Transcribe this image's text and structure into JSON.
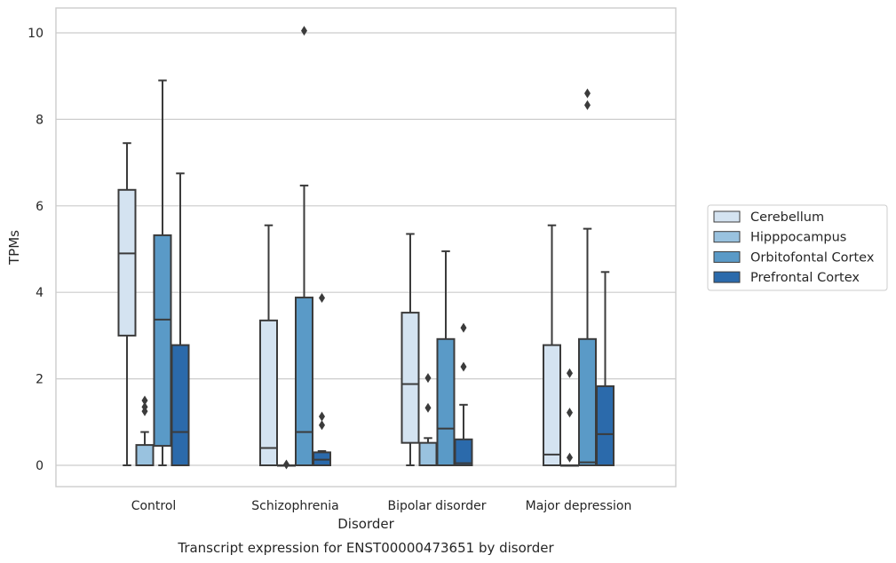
{
  "chart_data": {
    "type": "boxplot",
    "title": "Transcript expression for ENST00000473651 by disorder",
    "xlabel": "Disorder",
    "ylabel": "TPMs",
    "ylim": [
      -0.5,
      10.6
    ],
    "yticks": [
      0,
      2,
      4,
      6,
      8,
      10
    ],
    "grid": true,
    "legend_position": "right",
    "categories": [
      "Control",
      "Schizophrenia",
      "Bipolar disorder",
      "Major depression"
    ],
    "series": [
      {
        "name": "Cerebellum",
        "color": "#d4e3f1",
        "boxes": [
          {
            "whislo": 0.0,
            "q1": 3.0,
            "med": 4.9,
            "q3": 6.37,
            "whishi": 7.45,
            "fliers": []
          },
          {
            "whislo": 0.0,
            "q1": 0.0,
            "med": 0.4,
            "q3": 3.35,
            "whishi": 5.55,
            "fliers": []
          },
          {
            "whislo": 0.0,
            "q1": 0.52,
            "med": 1.88,
            "q3": 3.53,
            "whishi": 5.35,
            "fliers": []
          },
          {
            "whislo": 0.0,
            "q1": 0.0,
            "med": 0.25,
            "q3": 2.78,
            "whishi": 5.55,
            "fliers": []
          }
        ]
      },
      {
        "name": "Hipppocampus",
        "color": "#99c2df",
        "boxes": [
          {
            "whislo": 0.0,
            "q1": 0.0,
            "med": 0.0,
            "q3": 0.47,
            "whishi": 0.77,
            "fliers": [
              1.25,
              1.35,
              1.5
            ]
          },
          {
            "whislo": 0.0,
            "q1": 0.0,
            "med": 0.0,
            "q3": 0.0,
            "whishi": 0.0,
            "fliers": [
              0.02
            ]
          },
          {
            "whislo": 0.0,
            "q1": 0.0,
            "med": 0.0,
            "q3": 0.52,
            "whishi": 0.63,
            "fliers": [
              1.33,
              2.02
            ]
          },
          {
            "whislo": 0.0,
            "q1": 0.0,
            "med": 0.0,
            "q3": 0.0,
            "whishi": 0.0,
            "fliers": [
              0.18,
              1.22,
              2.13
            ]
          }
        ]
      },
      {
        "name": "Orbitofontal Cortex",
        "color": "#5a9ac7",
        "boxes": [
          {
            "whislo": 0.0,
            "q1": 0.45,
            "med": 3.37,
            "q3": 5.32,
            "whishi": 8.9,
            "fliers": []
          },
          {
            "whislo": 0.0,
            "q1": 0.0,
            "med": 0.77,
            "q3": 3.88,
            "whishi": 6.47,
            "fliers": [
              10.05
            ]
          },
          {
            "whislo": 0.0,
            "q1": 0.0,
            "med": 0.85,
            "q3": 2.92,
            "whishi": 4.95,
            "fliers": []
          },
          {
            "whislo": 0.0,
            "q1": 0.0,
            "med": 0.07,
            "q3": 2.92,
            "whishi": 5.47,
            "fliers": [
              8.33,
              8.6
            ]
          }
        ]
      },
      {
        "name": "Prefrontal Cortex",
        "color": "#2b6aab",
        "boxes": [
          {
            "whislo": 0.0,
            "q1": 0.0,
            "med": 0.77,
            "q3": 2.78,
            "whishi": 6.75,
            "fliers": []
          },
          {
            "whislo": 0.0,
            "q1": 0.0,
            "med": 0.13,
            "q3": 0.3,
            "whishi": 0.33,
            "fliers": [
              0.93,
              1.13,
              3.87
            ]
          },
          {
            "whislo": 0.0,
            "q1": 0.0,
            "med": 0.05,
            "q3": 0.6,
            "whishi": 1.4,
            "fliers": [
              2.28,
              3.18
            ]
          },
          {
            "whislo": 0.0,
            "q1": 0.0,
            "med": 0.72,
            "q3": 1.83,
            "whishi": 4.47,
            "fliers": []
          }
        ]
      }
    ]
  }
}
